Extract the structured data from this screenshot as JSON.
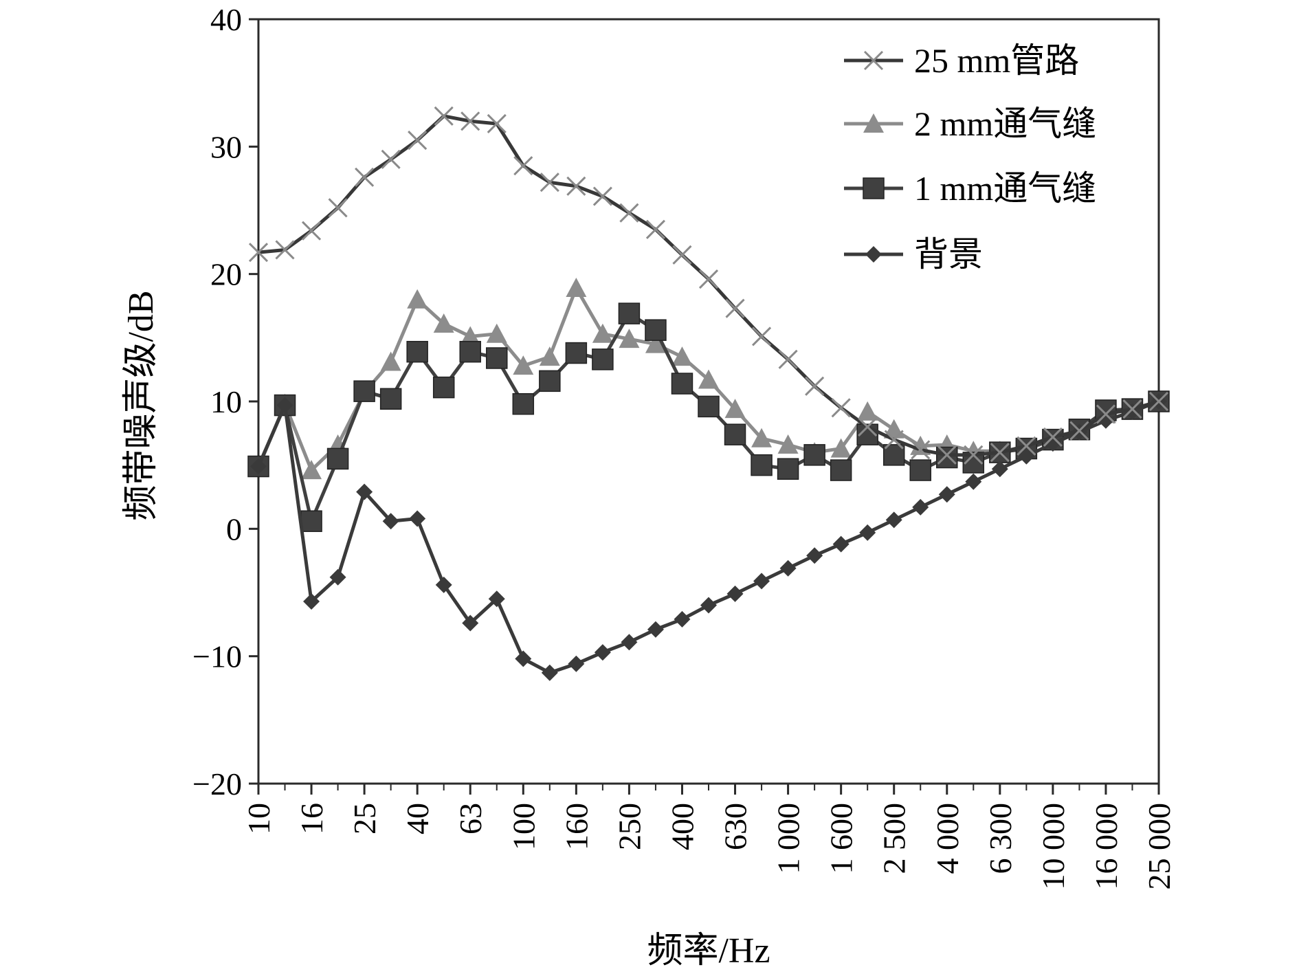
{
  "chart_data": {
    "type": "line",
    "title": "",
    "xlabel": "频率/Hz",
    "ylabel": "频带噪声级/dB",
    "ylim": [
      -20,
      40
    ],
    "yticks": [
      -20,
      -10,
      0,
      10,
      20,
      30,
      40
    ],
    "ytick_labels": [
      "−20",
      "−10",
      "0",
      "10",
      "20",
      "30",
      "40"
    ],
    "grid": false,
    "legend_position": "top-right",
    "x": [
      10,
      12.5,
      16,
      20,
      25,
      31.5,
      40,
      50,
      63,
      80,
      100,
      125,
      160,
      200,
      250,
      315,
      400,
      500,
      630,
      800,
      1000,
      1250,
      1600,
      2000,
      2500,
      3150,
      4000,
      5000,
      6300,
      8000,
      10000,
      12500,
      16000,
      20000,
      25000
    ],
    "xtick_values": [
      10,
      16,
      25,
      40,
      63,
      100,
      160,
      250,
      400,
      630,
      1000,
      1600,
      2500,
      4000,
      6300,
      10000,
      16000,
      25000
    ],
    "xtick_labels": [
      "10",
      "16",
      "25",
      "40",
      "63",
      "100",
      "160",
      "250",
      "400",
      "630",
      "1 000",
      "1 600",
      "2 500",
      "4 000",
      "6 300",
      "10 000",
      "16 000",
      "25 000"
    ],
    "series": [
      {
        "name": "25 mm管路",
        "marker": "x",
        "color": "#383838",
        "values": [
          21.7,
          21.9,
          23.4,
          25.2,
          27.6,
          29,
          30.5,
          32.4,
          32,
          31.8,
          28.5,
          27.2,
          26.9,
          26.1,
          24.8,
          23.5,
          21.5,
          19.6,
          17.3,
          15.1,
          13.3,
          11.2,
          9.5,
          8,
          7,
          6.2,
          5.8,
          5.8,
          6,
          6.5,
          7.2,
          7.7,
          9,
          9.4,
          10
        ]
      },
      {
        "name": "2 mm通气缝",
        "marker": "triangle",
        "color": "#8c8c8c",
        "values": [
          4.8,
          9.8,
          4.6,
          6.6,
          10.7,
          13.1,
          18,
          16.1,
          15.1,
          15.3,
          12.8,
          13.5,
          18.9,
          15.3,
          14.9,
          14.5,
          13.5,
          11.7,
          9.4,
          7.1,
          6.6,
          6,
          6.3,
          9.2,
          7.8,
          6.5,
          6.6,
          6.1,
          6.1,
          6.2,
          7,
          7.8,
          9,
          9.4,
          10
        ]
      },
      {
        "name": "1 mm通气缝",
        "marker": "square",
        "color": "#404040",
        "values": [
          4.9,
          9.7,
          0.6,
          5.5,
          10.8,
          10.2,
          13.9,
          11.1,
          13.9,
          13.4,
          9.8,
          11.6,
          13.8,
          13.3,
          16.9,
          15.6,
          11.4,
          9.6,
          7.4,
          5,
          4.7,
          5.8,
          4.6,
          7.4,
          5.8,
          4.6,
          5.6,
          5.2,
          6,
          6.3,
          7,
          7.8,
          9.3,
          9.4,
          10
        ]
      },
      {
        "name": "背景",
        "marker": "diamond",
        "color": "#3a3a3a",
        "values": [
          4.9,
          9.7,
          -5.7,
          -3.8,
          2.9,
          0.6,
          0.8,
          -4.4,
          -7.4,
          -5.5,
          -10.2,
          -11.3,
          -10.6,
          -9.7,
          -8.9,
          -7.9,
          -7.1,
          -6,
          -5.1,
          -4.1,
          -3.1,
          -2.1,
          -1.2,
          -0.3,
          0.7,
          1.7,
          2.7,
          3.7,
          4.7,
          5.7,
          6.7,
          7.6,
          8.5,
          9.2,
          10
        ]
      }
    ]
  }
}
